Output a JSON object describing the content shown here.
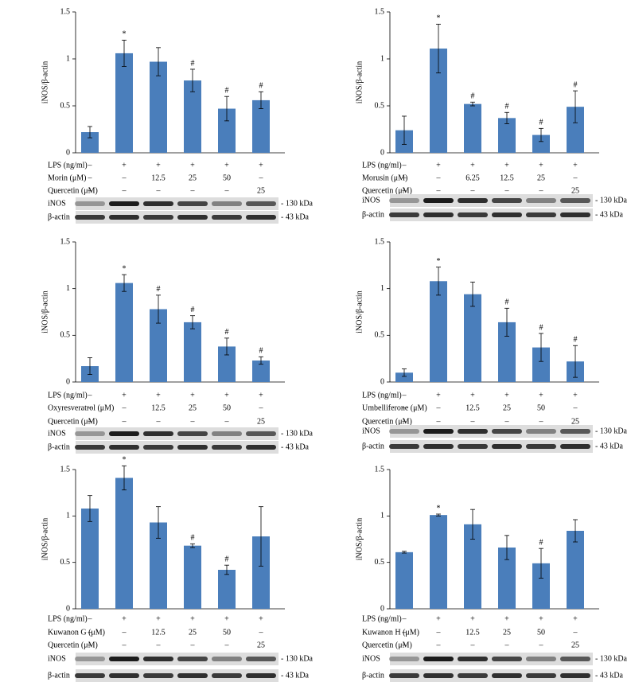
{
  "chart_data": [
    {
      "type": "bar",
      "ylabel": "iNOS/β-actin",
      "color": "#4a7ebb",
      "ylim": [
        0,
        1.5
      ],
      "yticks": [
        0,
        0.5,
        1,
        1.5
      ],
      "values": [
        0.22,
        1.06,
        0.97,
        0.77,
        0.47,
        0.56
      ],
      "errors": [
        0.06,
        0.14,
        0.15,
        0.12,
        0.13,
        0.09
      ],
      "annotations": [
        null,
        "*",
        null,
        "#",
        "#",
        "#"
      ],
      "treatments": [
        {
          "label": "LPS (ng/ml)",
          "values": [
            "–",
            "+",
            "+",
            "+",
            "+",
            "+"
          ]
        },
        {
          "label": "Morin (μM)",
          "values": [
            "–",
            "–",
            "12.5",
            "25",
            "50",
            "–"
          ]
        },
        {
          "label": "Quercetin (μM)",
          "values": [
            "–",
            "–",
            "–",
            "–",
            "–",
            "25"
          ]
        }
      ],
      "blot": [
        {
          "label": "iNOS",
          "size": "- 130 kDa"
        },
        {
          "label": "β-actin",
          "size": "- 43 kDa"
        }
      ]
    },
    {
      "type": "bar",
      "ylabel": "iNOS/β-actin",
      "color": "#4a7ebb",
      "ylim": [
        0,
        1.5
      ],
      "yticks": [
        0,
        0.5,
        1,
        1.5
      ],
      "values": [
        0.24,
        1.11,
        0.52,
        0.37,
        0.19,
        0.49
      ],
      "errors": [
        0.15,
        0.26,
        0.02,
        0.06,
        0.07,
        0.17
      ],
      "annotations": [
        null,
        "*",
        "#",
        "#",
        "#",
        "#"
      ],
      "treatments": [
        {
          "label": "LPS (ng/ml)",
          "values": [
            "–",
            "+",
            "+",
            "+",
            "+",
            "+"
          ]
        },
        {
          "label": "Morusin (μM)",
          "values": [
            "–",
            "–",
            "6.25",
            "12.5",
            "25",
            "–"
          ]
        },
        {
          "label": "Quercetin (μM)",
          "values": [
            "–",
            "–",
            "–",
            "–",
            "–",
            "25"
          ]
        }
      ],
      "blot": [
        {
          "label": "iNOS",
          "size": "- 130 kDa"
        },
        {
          "label": "β-actin",
          "size": "- 43 kDa"
        }
      ]
    },
    {
      "type": "bar",
      "ylabel": "iNOS/β-actin",
      "color": "#4a7ebb",
      "ylim": [
        0,
        1.5
      ],
      "yticks": [
        0,
        0.5,
        1,
        1.5
      ],
      "values": [
        0.17,
        1.06,
        0.78,
        0.64,
        0.38,
        0.23
      ],
      "errors": [
        0.09,
        0.09,
        0.15,
        0.07,
        0.09,
        0.04
      ],
      "annotations": [
        null,
        "*",
        "#",
        "#",
        "#",
        "#"
      ],
      "treatments": [
        {
          "label": "LPS (ng/ml)",
          "values": [
            "–",
            "+",
            "+",
            "+",
            "+",
            "+"
          ]
        },
        {
          "label": "Oxyresveratrol (μM)",
          "values": [
            "–",
            "–",
            "12.5",
            "25",
            "50",
            "–"
          ]
        },
        {
          "label": "Quercetin (μM)",
          "values": [
            "–",
            "–",
            "–",
            "–",
            "–",
            "25"
          ]
        }
      ],
      "blot": [
        {
          "label": "iNOS",
          "size": "- 130 kDa"
        },
        {
          "label": "β-actin",
          "size": "- 43 kDa"
        }
      ]
    },
    {
      "type": "bar",
      "ylabel": "iNOS/β-actin",
      "color": "#4a7ebb",
      "ylim": [
        0,
        1.5
      ],
      "yticks": [
        0,
        0.5,
        1,
        1.5
      ],
      "values": [
        0.1,
        1.08,
        0.94,
        0.64,
        0.37,
        0.22
      ],
      "errors": [
        0.04,
        0.15,
        0.13,
        0.15,
        0.15,
        0.17
      ],
      "annotations": [
        null,
        "*",
        null,
        "#",
        "#",
        "#"
      ],
      "treatments": [
        {
          "label": "LPS (ng/ml)",
          "values": [
            "–",
            "+",
            "+",
            "+",
            "+",
            "+"
          ]
        },
        {
          "label": "Umbelliferone (μM)",
          "values": [
            "–",
            "–",
            "12.5",
            "25",
            "50",
            "–"
          ]
        },
        {
          "label": "Quercetin (μM)",
          "values": [
            "–",
            "–",
            "–",
            "–",
            "–",
            "25"
          ]
        }
      ],
      "blot": [
        {
          "label": "iNOS",
          "size": "- 130 kDa"
        },
        {
          "label": "β-actin",
          "size": "- 43 kDa"
        }
      ]
    },
    {
      "type": "bar",
      "ylabel": "iNOS/β-actin",
      "color": "#4a7ebb",
      "ylim": [
        0,
        1.5
      ],
      "yticks": [
        0,
        0.5,
        1,
        1.5
      ],
      "values": [
        1.08,
        1.41,
        0.93,
        0.68,
        0.42,
        0.78
      ],
      "errors": [
        0.14,
        0.13,
        0.17,
        0.02,
        0.05,
        0.32
      ],
      "annotations": [
        null,
        "*",
        null,
        "#",
        "#",
        null
      ],
      "treatments": [
        {
          "label": "LPS (ng/ml)",
          "values": [
            "–",
            "+",
            "+",
            "+",
            "+",
            "+"
          ]
        },
        {
          "label": "Kuwanon G (μM)",
          "values": [
            "–",
            "–",
            "12.5",
            "25",
            "50",
            "–"
          ]
        },
        {
          "label": "Quercetin (μM)",
          "values": [
            "–",
            "–",
            "–",
            "–",
            "–",
            "25"
          ]
        }
      ],
      "blot": [
        {
          "label": "iNOS",
          "size": "- 130 kDa"
        },
        {
          "label": "β-actin",
          "size": "- 43 kDa"
        }
      ]
    },
    {
      "type": "bar",
      "ylabel": "iNOS/β-actin",
      "color": "#4a7ebb",
      "ylim": [
        0,
        1.5
      ],
      "yticks": [
        0,
        0.5,
        1,
        1.5
      ],
      "values": [
        0.61,
        1.01,
        0.91,
        0.66,
        0.49,
        0.84
      ],
      "errors": [
        0.01,
        0.01,
        0.16,
        0.13,
        0.16,
        0.12
      ],
      "annotations": [
        null,
        "*",
        null,
        null,
        "#",
        null
      ],
      "treatments": [
        {
          "label": "LPS (ng/ml)",
          "values": [
            "–",
            "+",
            "+",
            "+",
            "+",
            "+"
          ]
        },
        {
          "label": "Kuwanon H (μM)",
          "values": [
            "–",
            "–",
            "12.5",
            "25",
            "50",
            "–"
          ]
        },
        {
          "label": "Quercetin (μM)",
          "values": [
            "–",
            "–",
            "–",
            "–",
            "–",
            "25"
          ]
        }
      ],
      "blot": [
        {
          "label": "iNOS",
          "size": "- 130 kDa"
        },
        {
          "label": "β-actin",
          "size": "- 43 kDa"
        }
      ]
    }
  ]
}
